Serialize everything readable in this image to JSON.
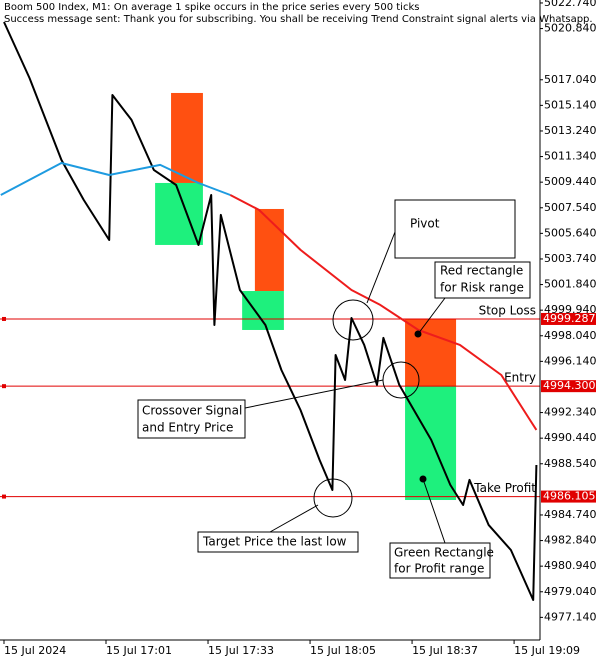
{
  "chart_data": {
    "type": "line",
    "title": "Boom 500 Index, M1:  On average 1 spike occurs in the price series every 500 ticks",
    "subtitle": "Success message sent: Thank you for subscribing. You shall be receiving Trend Constraint signal alerts via Whatsapp.",
    "xlim": [
      -1.25,
      167.5
    ],
    "xticks": [
      {
        "value": 0,
        "label": "15 Jul 2024"
      },
      {
        "value": 32,
        "label": "15 Jul 17:01"
      },
      {
        "value": 64,
        "label": "15 Jul 17:33"
      },
      {
        "value": 96,
        "label": "15 Jul 18:05"
      },
      {
        "value": 128,
        "label": "15 Jul 18:37"
      },
      {
        "value": 160,
        "label": "15 Jul 19:09"
      }
    ],
    "ylim": [
      4975.46,
      5022.96
    ],
    "yticks": [
      {
        "value": 5022.74,
        "label": "5022.740"
      },
      {
        "value": 5020.84,
        "label": "5020.840"
      },
      {
        "value": 5017.04,
        "label": "5017.040"
      },
      {
        "value": 5015.14,
        "label": "5015.140"
      },
      {
        "value": 5013.24,
        "label": "5013.240"
      },
      {
        "value": 5011.34,
        "label": "5011.340"
      },
      {
        "value": 5009.44,
        "label": "5009.440"
      },
      {
        "value": 5007.54,
        "label": "5007.540"
      },
      {
        "value": 5005.64,
        "label": "5005.640"
      },
      {
        "value": 5003.74,
        "label": "5003.740"
      },
      {
        "value": 5001.84,
        "label": "5001.840"
      },
      {
        "value": 4999.94,
        "label": "4999.940"
      },
      {
        "value": 4998.04,
        "label": "4998.040"
      },
      {
        "value": 4996.14,
        "label": "4996.140"
      },
      {
        "value": 4992.34,
        "label": "4992.340"
      },
      {
        "value": 4990.44,
        "label": "4990.440"
      },
      {
        "value": 4988.54,
        "label": "4988.540"
      },
      {
        "value": 4984.74,
        "label": "4984.740"
      },
      {
        "value": 4982.84,
        "label": "4982.840"
      },
      {
        "value": 4980.94,
        "label": "4980.940"
      },
      {
        "value": 4979.04,
        "label": "4979.040"
      },
      {
        "value": 4977.14,
        "label": "4977.140"
      }
    ],
    "series": [
      {
        "color": "#000000",
        "x": [
          0,
          8,
          18,
          25,
          33,
          34,
          40,
          47,
          54,
          61,
          65,
          66,
          68,
          74,
          82,
          87,
          93,
          99,
          103,
          104,
          107,
          109,
          113,
          117,
          119,
          124,
          134,
          140,
          144,
          146,
          152,
          159,
          166,
          167
        ],
        "values": [
          5021.33,
          5017.17,
          5011.09,
          5008.12,
          5005.15,
          5015.91,
          5014.06,
          5010.35,
          5009.23,
          5004.78,
          5008.49,
          4998.84,
          5007.01,
          5001.44,
          4998.84,
          4995.5,
          4992.53,
          4988.82,
          4986.59,
          4996.61,
          4994.76,
          4999.36,
          4997.36,
          4994.39,
          4997.88,
          4994.39,
          4990.31,
          4986.97,
          4985.48,
          4987.34,
          4984.0,
          4982.14,
          4978.43,
          4988.45
        ]
      },
      {
        "color": "#1e9be0",
        "x": [
          -1,
          18,
          33,
          49,
          61,
          71
        ],
        "values": [
          5008.49,
          5010.86,
          5009.97,
          5010.72,
          5009.38,
          5008.49
        ]
      },
      {
        "color": "#ee1c1c",
        "x": [
          71,
          80,
          93,
          109,
          118,
          130,
          143,
          156,
          165,
          167
        ],
        "values": [
          5008.49,
          5007.38,
          5004.41,
          5001.44,
          5000.33,
          4998.47,
          4997.36,
          4995.13,
          4991.79,
          4991.05
        ]
      }
    ],
    "levels": {
      "names": [
        "Stop Loss",
        "Entry",
        "Take Profit"
      ],
      "values": [
        4999.287,
        4994.3,
        4986.105
      ],
      "value_labels": [
        "4999.287",
        "4994.300",
        "4986.105"
      ],
      "color": "#e00000"
    },
    "zones": [
      {
        "risk_x": [
          52.4,
          62.4
        ],
        "risk": [
          5009.38,
          5016.06
        ],
        "profit_x": [
          47.4,
          62.4
        ],
        "profit": [
          5004.78,
          5009.38
        ]
      },
      {
        "risk_x": [
          78.7,
          87.8
        ],
        "risk": [
          5001.36,
          5007.45
        ],
        "profit_x": [
          74.7,
          87.8
        ],
        "profit": [
          4998.47,
          5001.36
        ]
      },
      {
        "risk_x": [
          125.8,
          141.8
        ],
        "risk": [
          4994.3,
          4999.287
        ],
        "profit_x": [
          125.8,
          141.8
        ],
        "profit": [
          4985.85,
          4994.3
        ]
      }
    ],
    "risk_color": "#ff5011",
    "profit_color": "#1ef07d",
    "annotations": [
      [
        "Pivot"
      ],
      [
        "Red rectangle",
        "for Risk range"
      ],
      [
        "Crossover Signal",
        "and Entry Price"
      ],
      [
        "Target Price the last low"
      ],
      [
        "Green Rectangle",
        "for Profit range"
      ]
    ]
  }
}
